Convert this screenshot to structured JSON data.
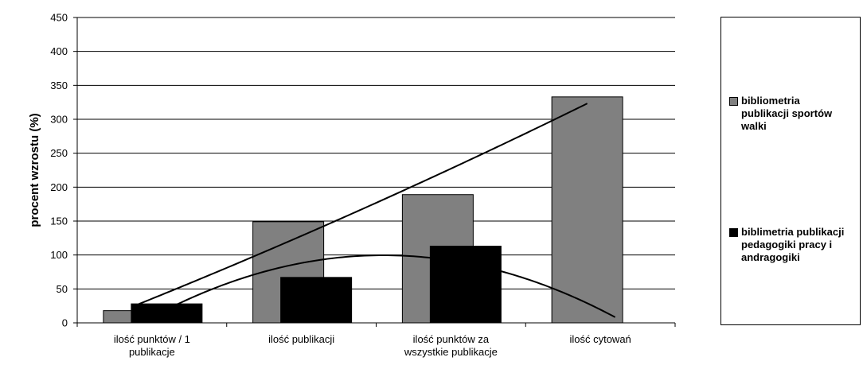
{
  "chart_data": {
    "type": "bar",
    "title": "",
    "xlabel": "",
    "ylabel": "procent wzrostu (%)",
    "ylim": [
      0,
      450
    ],
    "yticks": [
      0,
      50,
      100,
      150,
      200,
      250,
      300,
      350,
      400,
      450
    ],
    "grid": true,
    "legend_position": "right",
    "categories": [
      [
        "ilość punktów / 1",
        "publikacje"
      ],
      [
        "ilość publikacji"
      ],
      [
        "ilość punktów za",
        "wszystkie publikacje"
      ],
      [
        "ilość cytowań"
      ]
    ],
    "series": [
      {
        "name": "bibliometria publikacji sportów walki",
        "name_lines": [
          "bibliometria",
          "publikacji sportów",
          "walki"
        ],
        "color": "#808080",
        "values": [
          18,
          149,
          189,
          333
        ],
        "trendline": {
          "type": "polynomial",
          "color": "#000000"
        }
      },
      {
        "name": "biblimetria publikacji pedagogiki pracy i andragogiki",
        "name_lines": [
          "biblimetria publikacji",
          "pedagogiki pracy i",
          "andragogiki"
        ],
        "color": "#000000",
        "values": [
          28,
          67,
          113,
          0
        ],
        "trendline": {
          "type": "polynomial",
          "color": "#000000"
        }
      }
    ]
  }
}
